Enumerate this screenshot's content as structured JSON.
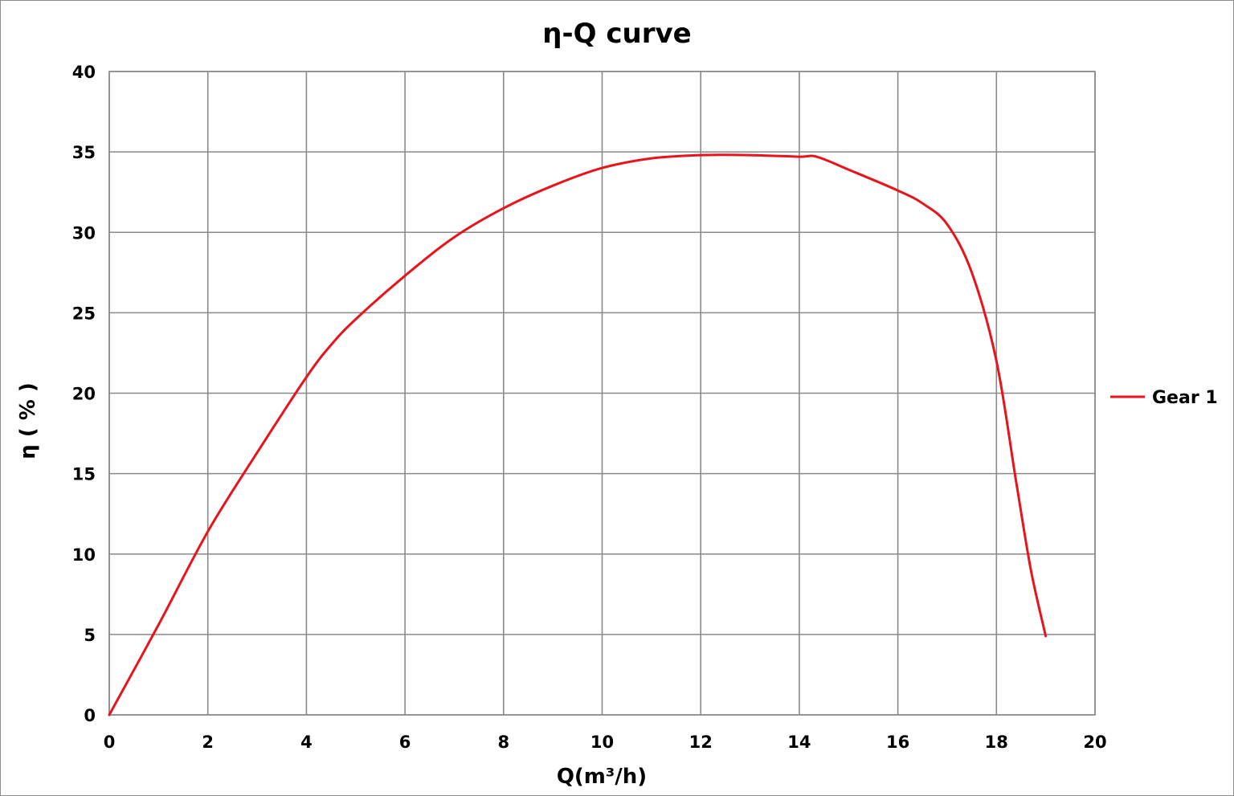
{
  "chart_data": {
    "type": "line",
    "title": "η-Q  curve",
    "xlabel": "Q(m³/h)",
    "ylabel": "η ( % )",
    "xlim": [
      0,
      20
    ],
    "ylim": [
      0,
      40
    ],
    "x_ticks": [
      "0",
      "2",
      "4",
      "6",
      "8",
      "10",
      "12",
      "14",
      "16",
      "18",
      "20"
    ],
    "y_ticks": [
      "0",
      "5",
      "10",
      "15",
      "20",
      "25",
      "30",
      "35",
      "40"
    ],
    "grid": true,
    "legend_position": "right",
    "series": [
      {
        "name": "Gear 1",
        "color": "#e8141c",
        "points": [
          [
            0,
            0
          ],
          [
            1,
            5.6
          ],
          [
            2,
            11.4
          ],
          [
            3,
            16.3
          ],
          [
            4,
            21
          ],
          [
            4.5,
            23
          ],
          [
            5,
            24.6
          ],
          [
            6,
            27.3
          ],
          [
            7,
            29.7
          ],
          [
            8,
            31.5
          ],
          [
            9,
            32.9
          ],
          [
            10,
            34
          ],
          [
            11,
            34.6
          ],
          [
            12,
            34.8
          ],
          [
            13,
            34.8
          ],
          [
            14,
            34.7
          ],
          [
            14.35,
            34.7
          ],
          [
            15,
            33.9
          ],
          [
            16,
            32.6
          ],
          [
            16.5,
            31.8
          ],
          [
            17,
            30.5
          ],
          [
            17.5,
            27.5
          ],
          [
            18,
            22
          ],
          [
            18.4,
            14.5
          ],
          [
            18.7,
            9
          ],
          [
            19,
            4.9
          ]
        ]
      }
    ]
  }
}
